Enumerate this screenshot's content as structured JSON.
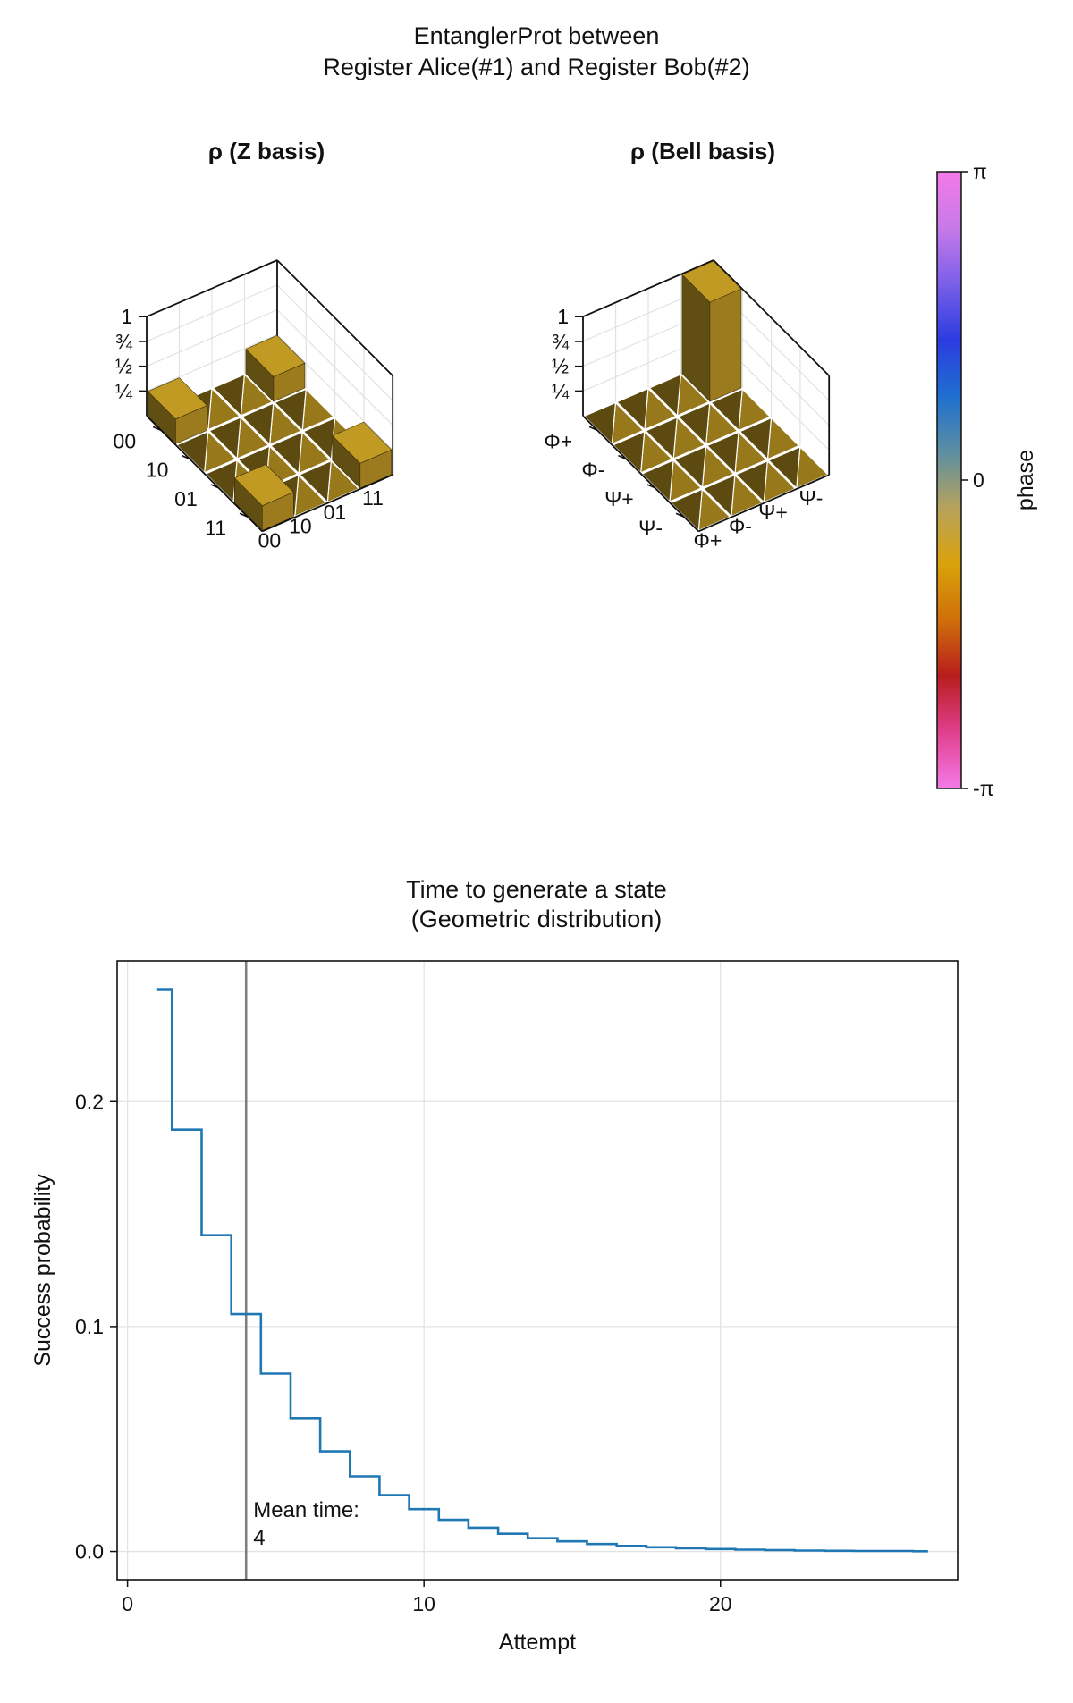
{
  "figure": {
    "title_line1": "EntanglerProt between",
    "title_line2": "Register Alice(#1) and Register Bob(#2)"
  },
  "chart_data": [
    {
      "type": "bar3d",
      "title": "ρ (Z basis)",
      "row_labels": [
        "00",
        "10",
        "01",
        "11"
      ],
      "col_labels": [
        "00",
        "10",
        "01",
        "11"
      ],
      "z_ticks": [
        "1",
        "¾",
        "½",
        "¼"
      ],
      "z_tick_values": [
        1,
        0.75,
        0.5,
        0.25
      ],
      "zlim": [
        0,
        1
      ],
      "values": [
        [
          0.25,
          0,
          0,
          0.25
        ],
        [
          0,
          0,
          0,
          0
        ],
        [
          0,
          0,
          0,
          0
        ],
        [
          0.25,
          0,
          0,
          0.25
        ]
      ],
      "color": "#a8861f"
    },
    {
      "type": "bar3d",
      "title": "ρ (Bell basis)",
      "row_labels": [
        "Φ+",
        "Φ-",
        "Ψ+",
        "Ψ-"
      ],
      "col_labels": [
        "Φ+",
        "Φ-",
        "Ψ+",
        "Ψ-"
      ],
      "z_ticks": [
        "1",
        "¾",
        "½",
        "¼"
      ],
      "z_tick_values": [
        1,
        0.75,
        0.5,
        0.25
      ],
      "zlim": [
        0,
        1
      ],
      "values": [
        [
          1,
          0,
          0,
          0
        ],
        [
          0,
          0,
          0,
          0
        ],
        [
          0,
          0,
          0,
          0
        ],
        [
          0,
          0,
          0,
          0
        ]
      ],
      "color": "#a8861f"
    },
    {
      "type": "colorbar",
      "label": "phase",
      "ticks": [
        "π",
        "0",
        "-π"
      ],
      "range": [
        -3.14159,
        3.14159
      ],
      "colors_bottom_to_top": [
        "#f47ae8",
        "#e0408e",
        "#b81d1d",
        "#cf6f0a",
        "#d9a20a",
        "#b7a25c",
        "#5c8fa2",
        "#1f6fd0",
        "#2c3ce0",
        "#7a5fe8",
        "#c77ae8",
        "#f47ae8"
      ]
    },
    {
      "type": "line",
      "title_line1": "Time to generate a state",
      "title_line2": "(Geometric distribution)",
      "xlabel": "Attempt",
      "ylabel": "Success probability",
      "xlim": [
        -0.35,
        28
      ],
      "ylim": [
        -0.0125,
        0.2625
      ],
      "x_ticks": [
        0,
        10,
        20
      ],
      "y_ticks": [
        0.0,
        0.1,
        0.2
      ],
      "y_tick_labels": [
        "0.0",
        "0.1",
        "0.2"
      ],
      "grid": true,
      "step": true,
      "series": [
        {
          "color": "#1f77b4",
          "x": [
            1,
            2,
            3,
            4,
            5,
            6,
            7,
            8,
            9,
            10,
            11,
            12,
            13,
            14,
            15,
            16,
            17,
            18,
            19,
            20,
            21,
            22,
            23,
            24,
            25,
            26,
            27
          ],
          "values": [
            0.25,
            0.1875,
            0.1406,
            0.1055,
            0.0791,
            0.0593,
            0.0445,
            0.0334,
            0.025,
            0.0188,
            0.0141,
            0.0106,
            0.0079,
            0.0059,
            0.0045,
            0.0033,
            0.0025,
            0.0019,
            0.0014,
            0.0011,
            0.0008,
            0.0006,
            0.0004,
            0.0003,
            0.0002,
            0.0002,
            0.0001
          ]
        }
      ],
      "vline": {
        "x": 4,
        "color": "#808080"
      },
      "annotation_line1": "Mean time:",
      "annotation_line2": "4"
    }
  ]
}
